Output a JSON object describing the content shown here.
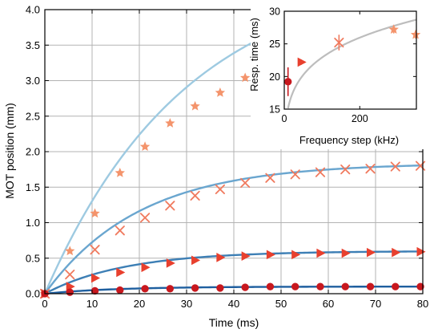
{
  "chart_data": [
    {
      "type": "scatter",
      "xlabel": "Time (ms)",
      "ylabel": "MOT position (mm)",
      "xlim": [
        0,
        80
      ],
      "ylim": [
        0,
        4.0
      ],
      "xticks": [
        "0",
        "10",
        "20",
        "30",
        "40",
        "50",
        "60",
        "70",
        "80"
      ],
      "yticks": [
        "0.0",
        "0.5",
        "1.0",
        "1.5",
        "2.0",
        "2.5",
        "3.0",
        "3.5",
        "4.0"
      ],
      "grid": true,
      "series": [
        {
          "marker": "star",
          "color": "#f4946c",
          "fit_color": "#9ecae1",
          "x": [
            0,
            5.3,
            10.6,
            15.9,
            21.2,
            26.5,
            31.8,
            37.1,
            42.4,
            47.7
          ],
          "y": [
            0.0,
            0.6,
            1.13,
            1.7,
            2.07,
            2.4,
            2.64,
            2.83,
            3.04,
            3.18
          ],
          "fit": {
            "model": "saturating_exponential",
            "amplitude": 4.6,
            "tau_ms": 30
          }
        },
        {
          "marker": "x",
          "color": "#f07a5e",
          "fit_color": "#6aa6cf",
          "x": [
            0,
            5.3,
            10.6,
            15.9,
            21.2,
            26.5,
            31.8,
            37.1,
            42.4,
            47.7,
            53.0,
            58.3,
            63.6,
            68.9,
            74.2,
            79.5
          ],
          "y": [
            0.0,
            0.27,
            0.62,
            0.89,
            1.07,
            1.24,
            1.38,
            1.47,
            1.56,
            1.63,
            1.68,
            1.71,
            1.75,
            1.76,
            1.79,
            1.8
          ],
          "fit": {
            "model": "saturating_exponential",
            "amplitude": 1.84,
            "tau_ms": 20
          }
        },
        {
          "marker": "triangle-right",
          "color": "#e8402e",
          "fit_color": "#3d7fb5",
          "x": [
            0,
            5.3,
            10.6,
            15.9,
            21.2,
            26.5,
            31.8,
            37.1,
            42.4,
            47.7,
            53.0,
            58.3,
            63.6,
            68.9,
            74.2,
            79.5
          ],
          "y": [
            0.0,
            0.1,
            0.22,
            0.3,
            0.37,
            0.43,
            0.47,
            0.51,
            0.53,
            0.55,
            0.55,
            0.57,
            0.57,
            0.58,
            0.58,
            0.59
          ],
          "fit": {
            "model": "saturating_exponential",
            "amplitude": 0.6,
            "tau_ms": 17
          }
        },
        {
          "marker": "circle",
          "color": "#c8181e",
          "fit_color": "#1f5f9f",
          "x": [
            0,
            5.3,
            10.6,
            15.9,
            21.2,
            26.5,
            31.8,
            37.1,
            42.4,
            47.7,
            53.0,
            58.3,
            63.6,
            68.9,
            74.2,
            79.5
          ],
          "y": [
            0.0,
            0.02,
            0.04,
            0.05,
            0.07,
            0.07,
            0.08,
            0.08,
            0.09,
            0.1,
            0.1,
            0.1,
            0.1,
            0.1,
            0.1,
            0.1
          ],
          "fit": {
            "model": "saturating_exponential",
            "amplitude": 0.1,
            "tau_ms": 15
          }
        }
      ]
    },
    {
      "type": "scatter",
      "xlabel": "Frequency step (kHz)",
      "ylabel": "Resp. time (ms)",
      "xlim": [
        0,
        350
      ],
      "ylim": [
        15,
        30
      ],
      "xticks": [
        "0",
        "200"
      ],
      "yticks": [
        "15",
        "20",
        "25",
        "30"
      ],
      "grid": false,
      "trend_line": {
        "color": "#bdbdbd",
        "model": "power",
        "coefficient": 10,
        "exponent": 0.18
      },
      "points": [
        {
          "x": 10,
          "y": 19.2,
          "yerr": 2.2,
          "marker": "circle",
          "color": "#c8181e"
        },
        {
          "x": 45,
          "y": 22.2,
          "yerr": 0.4,
          "marker": "triangle-right",
          "color": "#e8402e"
        },
        {
          "x": 145,
          "y": 25.2,
          "yerr": 1.2,
          "marker": "x",
          "color": "#f07a5e"
        },
        {
          "x": 290,
          "y": 27.2,
          "yerr": 0.6,
          "marker": "star",
          "color": "#f4946c"
        },
        {
          "x": 348,
          "y": 26.4,
          "yerr": 0.6,
          "marker": "star",
          "color": "#f4946c"
        }
      ]
    }
  ]
}
